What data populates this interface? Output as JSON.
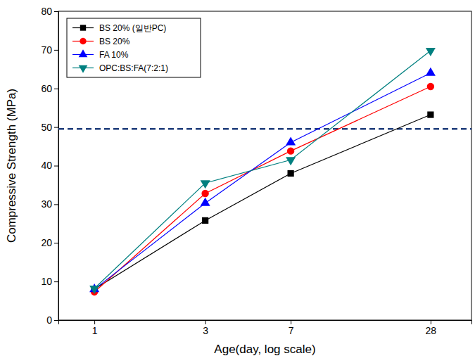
{
  "chart_data": {
    "type": "line",
    "x_label": "Age(day, log scale)",
    "y_label": "Compressive Strength (MPa)",
    "x": [
      1,
      3,
      7,
      28
    ],
    "xlim": [
      0.7,
      42
    ],
    "xticks": [
      1,
      3,
      7,
      28
    ],
    "ylim": [
      0,
      80
    ],
    "yticks": [
      0,
      10,
      20,
      30,
      40,
      50,
      60,
      70,
      80
    ],
    "log": "x",
    "grid": false,
    "legend": "upper left",
    "series": [
      {
        "name": "BS 20% (일반PC)",
        "color": "#000000",
        "marker": "square",
        "line_style": "solid",
        "values": [
          8.0,
          25.8,
          38.0,
          53.2
        ]
      },
      {
        "name": "BS 20%",
        "color": "#ff0000",
        "marker": "circle",
        "line_style": "solid",
        "values": [
          7.3,
          32.8,
          43.8,
          60.5
        ]
      },
      {
        "name": "FA 10%",
        "color": "#0000ff",
        "marker": "triangle",
        "line_style": "solid",
        "values": [
          8.0,
          30.3,
          46.0,
          64.0
        ]
      },
      {
        "name": "OPC:BS:FA(7:2:1)",
        "color": "#008080",
        "marker": "triangle-down",
        "line_style": "solid",
        "values": [
          8.2,
          35.5,
          41.5,
          69.8
        ]
      }
    ],
    "reference_line": {
      "value": 49.5,
      "color": "#1f3d7a",
      "line_style": "dashed"
    }
  }
}
